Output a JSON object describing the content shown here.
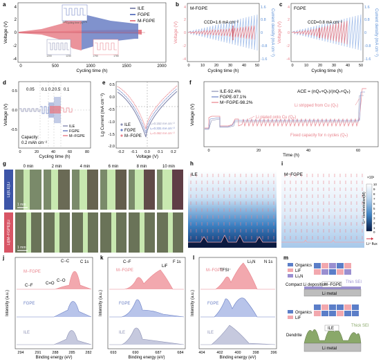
{
  "colors": {
    "ile": "#8a8fb3",
    "fgpe": "#6a7fc4",
    "mfgpe": "#e8808a",
    "blue": "#5b8fd6",
    "pink": "#f2a8ae",
    "navy": "#20296b",
    "green": "#8aa86a"
  },
  "panel_labels": [
    "a",
    "b",
    "c",
    "d",
    "e",
    "f",
    "g",
    "h",
    "i",
    "j",
    "k",
    "l",
    "m"
  ],
  "a": {
    "legend": [
      "ILE",
      "FGPE",
      "M-FGPE"
    ],
    "ylabel": "Voltage (V)",
    "xlabel": "Cycling time (h)",
    "yticks": [
      "4",
      "2",
      "0",
      "-2",
      "-4"
    ],
    "xticks": [
      "0",
      "500",
      "1000",
      "1500",
      "2000"
    ],
    "inset_xlabel": "Cycling time (h)",
    "inset1_ticks": [
      "460",
      "466",
      "470",
      "475"
    ],
    "inset2_ticks": [
      "1200",
      "1210",
      "1220",
      "1230"
    ],
    "inset3_ticks": [
      "1750",
      "1760",
      "1770",
      "1780"
    ]
  },
  "b": {
    "title": "M-FGPE",
    "annotation": "CCD=1.6 mA cm⁻²",
    "ylabel": "Voltage (V)",
    "y2label": "Current density (mA cm⁻²)",
    "xlabel": "Cycling time (h)",
    "yticks": [
      "4",
      "2",
      "0",
      "-2",
      "-4"
    ],
    "y2ticks": [
      "1.6",
      "0.8",
      "0",
      "-0.8",
      "-1.6"
    ],
    "xticks": [
      "0",
      "10",
      "20",
      "30",
      "40",
      "50"
    ]
  },
  "c": {
    "title": "FGPE",
    "annotation": "CCD=0.8 mA cm⁻²",
    "ylabel": "Voltage (V)",
    "y2label": "Current density (mA cm⁻²)",
    "xlabel": "Cycling time (h)",
    "yticks": [
      "4",
      "2",
      "0",
      "-2",
      "-4"
    ],
    "y2ticks": [
      "1.6",
      "0.8",
      "0",
      "-0.8",
      "-1.6"
    ],
    "xticks": [
      "0",
      "10",
      "20",
      "30",
      "40",
      "50"
    ]
  },
  "d": {
    "ylabel": "Voltage (V)",
    "xlabel": "Cycling time (h)",
    "rates": [
      "0.05",
      "0.1",
      "0.2",
      "0.5",
      "0.1"
    ],
    "capacity_label": "Capacity:",
    "capacity_value": "0.2 mAh cm⁻²",
    "legend": [
      "ILE",
      "FGPE",
      "M−FGPE"
    ],
    "yticks": [
      "0.5",
      "0.0",
      "-0.5"
    ],
    "xticks": [
      "0",
      "20",
      "40",
      "60",
      "80"
    ]
  },
  "e": {
    "ylabel": "Lg Current (mA cm⁻²)",
    "xlabel": "Voltage (V)",
    "legend": [
      "ILE",
      "FGPE",
      "M−FGPE"
    ],
    "i0": [
      "i₀=0.152 mA cm⁻²",
      "i₀=0.331 mA cm⁻²",
      "i₀=0.462 mA cm⁻²"
    ],
    "yticks": [
      "0.5",
      "0.0",
      "-0.5",
      "-1.0",
      "-1.5",
      "-2.0"
    ],
    "xticks": [
      "-0.2",
      "-0.1",
      "0.0",
      "0.1",
      "0.2"
    ]
  },
  "f": {
    "ylabel": "Voltage (V)",
    "xlabel": "Time (h)",
    "legend": [
      "ILE-92.4%",
      "FGPE-97.1%",
      "M−FGPE-98.2%"
    ],
    "formula": "ACE = (nQₙ+Qₛ)/(nQₙ+Qₚ)",
    "ann_stripped": "Li stripped from Cu (Qₛ)",
    "ann_plated": "Li plated onto Cu (Qₚ)",
    "ann_fixed": "Fixed capacity for n cycles (Qₙ)",
    "xticks": [
      "0",
      "20",
      "40",
      "60"
    ]
  },
  "g": {
    "times": [
      "0 min",
      "2 min",
      "4 min",
      "6 min",
      "8 min",
      "10 min"
    ],
    "rows": [
      "Li||ILE||Li",
      "Li||M−FGPE||Li"
    ],
    "scalebar": "1 mm"
  },
  "h": {
    "title": "ILE"
  },
  "i": {
    "title": "M−FGPE",
    "colorbar_exp": "×10²",
    "colorbar_ticks": [
      "10",
      "9",
      "8",
      "7",
      "6",
      "5",
      "4",
      "3",
      "2",
      "1",
      "0"
    ],
    "colorbar_label": "Li⁺ concentration(M)",
    "flux_label": "Li⁺ flux"
  },
  "j": {
    "title": "C 1s",
    "samples": [
      "M−FGPE",
      "FGPE",
      "ILE"
    ],
    "peaks": [
      "C−C",
      "C−F",
      "C=O",
      "C−O"
    ],
    "xlabel": "Binding energy (eV)",
    "ylabel": "Intensity (a.u.)",
    "xticks": [
      "294",
      "291",
      "288",
      "285",
      "282"
    ]
  },
  "k": {
    "title": "F 1s",
    "samples": [
      "M−FGPE",
      "FGPE",
      "ILE"
    ],
    "peaks": [
      "C−F",
      "LiF"
    ],
    "xlabel": "Binding energy (eV)",
    "ylabel": "Intensity (a.u.)",
    "xticks": [
      "693",
      "690",
      "687",
      "684"
    ]
  },
  "l": {
    "title": "N 1s",
    "samples": [
      "M−FGPE",
      "FGPE",
      "ILE"
    ],
    "peaks": [
      "TFSI⁻",
      "Li₃N"
    ],
    "xlabel": "Binding energy (eV)",
    "ylabel": "Intensity (a.u.)",
    "xticks": [
      "404",
      "402",
      "400",
      "398",
      "396"
    ]
  },
  "m": {
    "legend": [
      "Organics",
      "LiF",
      "Li₃N"
    ],
    "legend2": [
      "Organics",
      "LiF"
    ],
    "top_label": "M−FGPE",
    "top_sei": "Thin SEI",
    "top_note": "Compact Li\ndeposition",
    "top_base": "Li metal",
    "bot_label": "ILE",
    "bot_sei": "Thick SEI",
    "bot_note": "Dendrite",
    "bot_base": "Li metal"
  }
}
